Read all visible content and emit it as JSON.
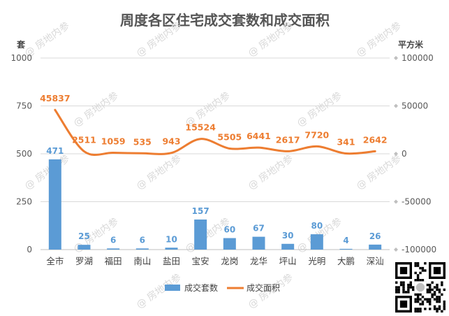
{
  "chart_data": {
    "type": "bar+line",
    "title": "周度各区住宅成交套数和成交面积",
    "left_axis_unit": "套",
    "right_axis_unit": "平方米",
    "left_ticks": [
      "0",
      "250",
      "500",
      "750",
      "1000"
    ],
    "right_ticks": [
      "-100000",
      "-50000",
      "0",
      "50000",
      "100000"
    ],
    "left_ylim": [
      0,
      1000
    ],
    "right_ylim": [
      -100000,
      100000
    ],
    "categories": [
      "全市",
      "罗湖",
      "福田",
      "南山",
      "盐田",
      "宝安",
      "龙岗",
      "龙华",
      "坪山",
      "光明",
      "大鹏",
      "深汕"
    ],
    "series": [
      {
        "name": "成交套数",
        "type": "bar",
        "axis": "left",
        "color": "#5b9bd5",
        "values": [
          471,
          25,
          6,
          6,
          10,
          157,
          60,
          67,
          30,
          80,
          4,
          26
        ],
        "labels": [
          "471",
          "25",
          "6",
          "6",
          "10",
          "157",
          "60",
          "67",
          "30",
          "80",
          "4",
          "26"
        ]
      },
      {
        "name": "成交面积",
        "type": "line",
        "axis": "right",
        "color": "#ed7d31",
        "values": [
          45837,
          2511,
          1059,
          535,
          943,
          15524,
          5505,
          6441,
          2617,
          7720,
          341,
          2642
        ],
        "labels": [
          "45837",
          "2511",
          "1059",
          "535",
          "943",
          "15524",
          "5505",
          "6441",
          "2617",
          "7720",
          "341",
          "2642"
        ]
      }
    ],
    "grid": true,
    "legend_position": "bottom"
  },
  "watermark": "@ 房地内参",
  "qr_icon": "qr-code-icon"
}
